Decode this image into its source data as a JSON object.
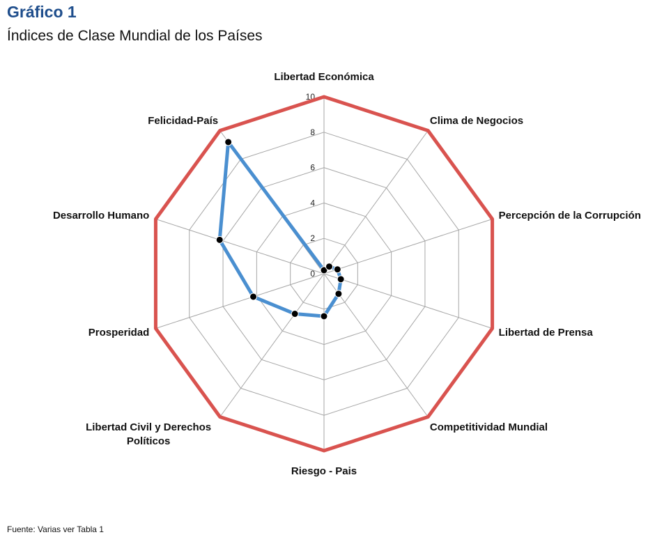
{
  "header": {
    "figure_label": "Gráfico 1",
    "title": "Índices de Clase Mundial de los Países"
  },
  "footer": {
    "source": "Fuente:  Varias ver Tabla 1"
  },
  "chart_data": {
    "type": "radar",
    "categories": [
      "Libertad Económica",
      "Clima de Negocios",
      "Percepción de la Corrupción",
      "Libertad de Prensa",
      "Competitividad Mundial",
      "Riesgo - Pais",
      "Libertad Civil y Derechos Políticos",
      "Prosperidad",
      "Desarrollo Humano",
      "Felicidad-País"
    ],
    "r_ticks": [
      "0",
      "2",
      "4",
      "6",
      "8",
      "10"
    ],
    "rlim": [
      0,
      10
    ],
    "grid": true,
    "series": [
      {
        "values": [
          10,
          10,
          10,
          10,
          10,
          10,
          10,
          10,
          10,
          10
        ],
        "color": "#d9534f"
      },
      {
        "values": [
          0.2,
          0.5,
          0.8,
          1.0,
          1.4,
          2.4,
          2.8,
          4.2,
          6.2,
          9.2
        ],
        "color": "#4a8fd0",
        "markers": true
      }
    ]
  }
}
